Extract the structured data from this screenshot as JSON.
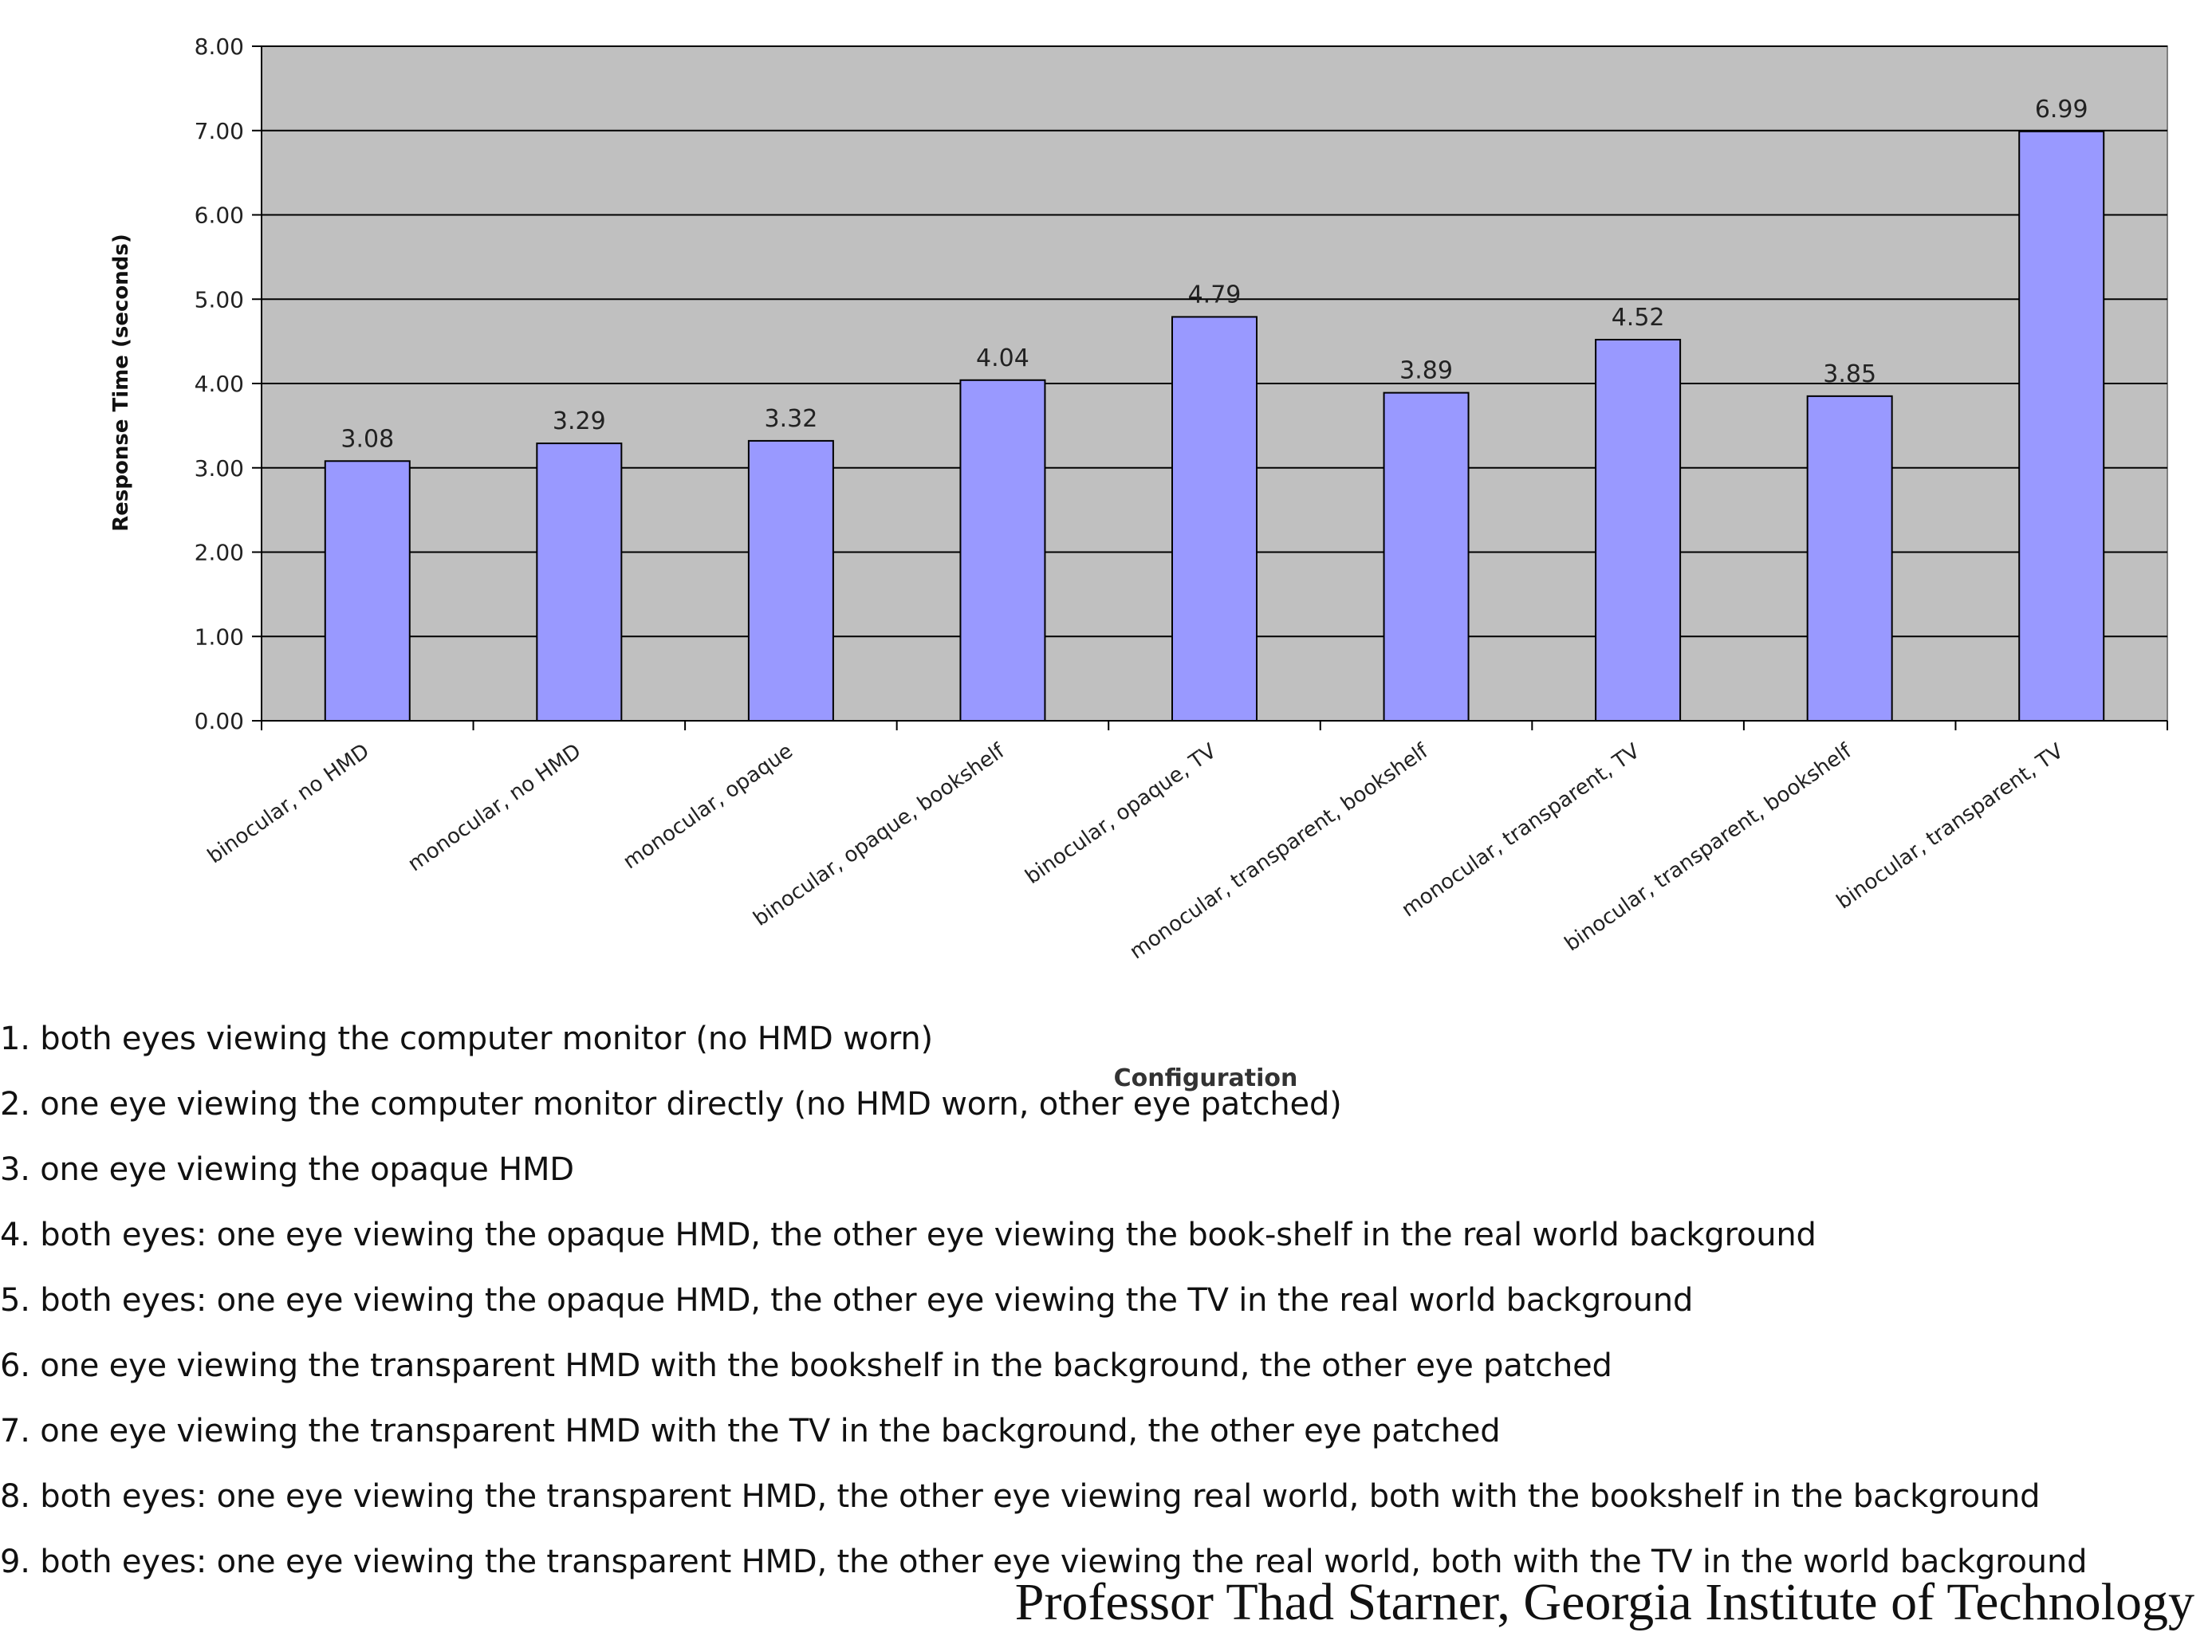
{
  "chart_data": {
    "type": "bar",
    "title": "",
    "xlabel": "Configuration",
    "ylabel": "Response Time (seconds)",
    "ylim": [
      0,
      8
    ],
    "yticks": [
      "0.00",
      "1.00",
      "2.00",
      "3.00",
      "4.00",
      "5.00",
      "6.00",
      "7.00",
      "8.00"
    ],
    "categories": [
      "binocular, no HMD",
      "monocular, no HMD",
      "monocular, opaque",
      "binocular, opaque, bookshelf",
      "binocular, opaque, TV",
      "monocular, transparent, bookshelf",
      "monocular, transparent, TV",
      "binocular, transparent, bookshelf",
      "binocular, transparent, TV"
    ],
    "values": [
      3.08,
      3.29,
      3.32,
      4.04,
      4.79,
      3.89,
      4.52,
      3.85,
      6.99
    ],
    "value_labels": [
      "3.08",
      "3.29",
      "3.32",
      "4.04",
      "4.79",
      "3.89",
      "4.52",
      "3.85",
      "6.99"
    ],
    "grid": true,
    "colors": {
      "bar": "#9999FF",
      "plot_background": "#C0C0C0",
      "gridline": "#000000"
    }
  },
  "notes": [
    "1. both eyes viewing the computer monitor (no HMD worn)",
    "2. one eye viewing the computer monitor directly (no HMD worn, other eye patched)",
    "3. one eye viewing the opaque HMD",
    "4. both eyes: one eye viewing the opaque HMD, the other eye viewing the book-shelf in the real world background",
    "5. both eyes: one eye viewing the opaque HMD, the other eye viewing the TV in the real world background",
    "6. one eye viewing the transparent HMD with the bookshelf in the background, the other eye patched",
    "7. one eye viewing the transparent HMD with the TV in the background, the other eye patched",
    "8. both eyes: one eye viewing the transparent HMD, the other eye viewing real world, both with the bookshelf in the background",
    "9. both eyes: one eye viewing the transparent HMD, the other eye viewing the real world, both with the TV in the world background"
  ],
  "credit": "Professor Thad Starner, Georgia Institute of Technology"
}
